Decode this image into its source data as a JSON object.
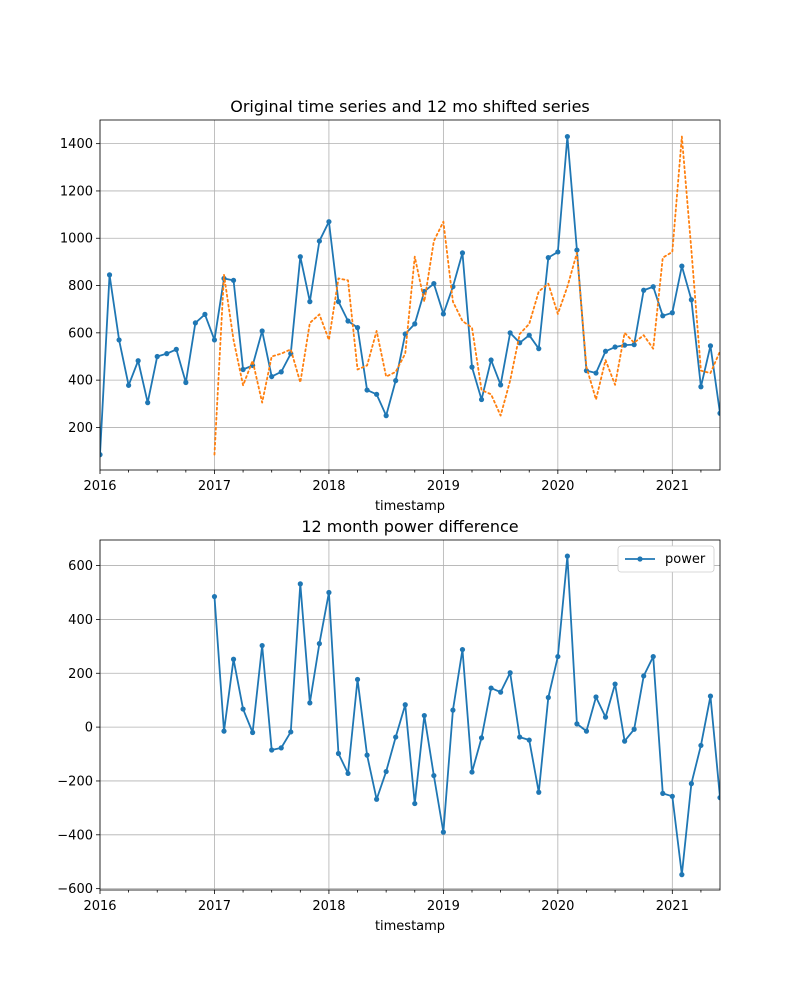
{
  "chart_data": [
    {
      "type": "line",
      "title": "Original time series and 12 mo shifted series",
      "xlabel": "timestamp",
      "ylabel": "",
      "x_start": "2016-01",
      "x_end": "2021-06",
      "xlim": [
        "2016-01",
        "2021-06"
      ],
      "ylim": [
        20,
        1500
      ],
      "xticks": [
        "2016",
        "2017",
        "2018",
        "2019",
        "2020",
        "2021"
      ],
      "yticks": [
        200,
        400,
        600,
        800,
        1000,
        1200,
        1400
      ],
      "grid": true,
      "series": [
        {
          "color": "#1f77b4",
          "style": "solid",
          "marker": "dot",
          "start": "2016-01",
          "values": [
            85,
            845,
            570,
            378,
            482,
            305,
            500,
            512,
            530,
            390,
            642,
            678,
            570,
            830,
            822,
            445,
            462,
            608,
            415,
            435,
            512,
            922,
            732,
            988,
            1070,
            732,
            650,
            622,
            358,
            340,
            250,
            398,
            595,
            638,
            775,
            808,
            680,
            795,
            938,
            455,
            318,
            485,
            380,
            600,
            558,
            590,
            533,
            918,
            942,
            1430,
            950,
            440,
            430,
            522,
            540,
            548,
            550,
            780,
            795,
            672,
            685,
            882,
            740,
            372,
            545,
            260
          ]
        },
        {
          "color": "#ff7f0e",
          "style": "dotted",
          "marker": "none",
          "start": "2017-01",
          "values": [
            85,
            845,
            570,
            378,
            482,
            305,
            500,
            512,
            530,
            390,
            642,
            678,
            570,
            830,
            822,
            445,
            462,
            608,
            415,
            435,
            512,
            922,
            732,
            988,
            1070,
            732,
            650,
            622,
            358,
            340,
            250,
            398,
            595,
            638,
            775,
            808,
            680,
            795,
            938,
            455,
            318,
            485,
            380,
            600,
            558,
            590,
            533,
            918,
            942,
            1430,
            950,
            440,
            430,
            522
          ]
        }
      ]
    },
    {
      "type": "line",
      "title": "12 month power difference",
      "xlabel": "timestamp",
      "ylabel": "",
      "x_start": "2016-01",
      "x_end": "2021-06",
      "xlim": [
        "2016-01",
        "2021-06"
      ],
      "ylim": [
        -605,
        695
      ],
      "xticks": [
        "2016",
        "2017",
        "2018",
        "2019",
        "2020",
        "2021"
      ],
      "yticks": [
        -600,
        -400,
        -200,
        0,
        200,
        400,
        600
      ],
      "grid": true,
      "legend": "top-right",
      "series": [
        {
          "name": "power",
          "color": "#1f77b4",
          "style": "solid",
          "marker": "dot",
          "start": "2017-01",
          "values": [
            485,
            -15,
            252,
            67,
            -20,
            303,
            -85,
            -77,
            -18,
            532,
            90,
            310,
            500,
            -98,
            -172,
            177,
            -104,
            -268,
            -165,
            -37,
            83,
            -284,
            43,
            -180,
            -390,
            63,
            288,
            -167,
            -40,
            145,
            130,
            202,
            -37,
            -48,
            -242,
            110,
            262,
            635,
            12,
            -15,
            112,
            37,
            160,
            -52,
            -8,
            190,
            262,
            -246,
            -257,
            -548,
            -210,
            -68,
            115,
            -262
          ]
        }
      ]
    }
  ]
}
